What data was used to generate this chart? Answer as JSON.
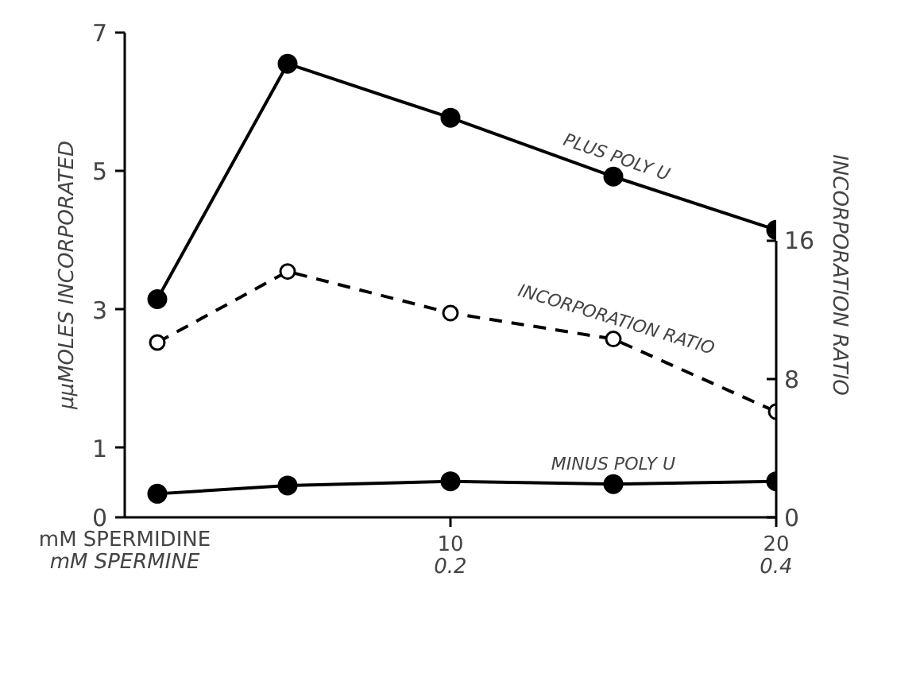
{
  "chart_data": {
    "type": "line",
    "ylabel": "μμMOLES INCORPORATED",
    "y2label": "INCORPORATION RATIO",
    "xlabel": "mM SPERMIDINE",
    "x2label": "mM SPERMINE",
    "x": [
      1,
      5,
      10,
      15,
      20
    ],
    "xlim": [
      0,
      20
    ],
    "xticks": [
      10,
      20
    ],
    "x2lim": [
      0,
      0.4
    ],
    "x2ticks": [
      0.2,
      0.4
    ],
    "ylim": [
      0,
      7
    ],
    "yticks": [
      0,
      1,
      3,
      5,
      7
    ],
    "y2lim": [
      0,
      28
    ],
    "y2ticks": [
      0,
      8,
      16
    ],
    "marker": "circle",
    "grid": false,
    "series": [
      {
        "name": "PLUS POLY U",
        "color": "#000000",
        "line_style": "solid",
        "values": [
          3.15,
          6.55,
          5.77,
          4.92,
          4.15
        ]
      },
      {
        "name": "INCORPORATION RATIO",
        "color": "#000000",
        "line_style": "dashed",
        "axis": "y2",
        "values": [
          10.1,
          14.2,
          11.8,
          10.3,
          6.1
        ]
      },
      {
        "name": "MINUS POLY U",
        "color": "#000000",
        "line_style": "solid",
        "values": [
          0.34,
          0.46,
          0.52,
          0.48,
          0.52
        ]
      }
    ]
  }
}
